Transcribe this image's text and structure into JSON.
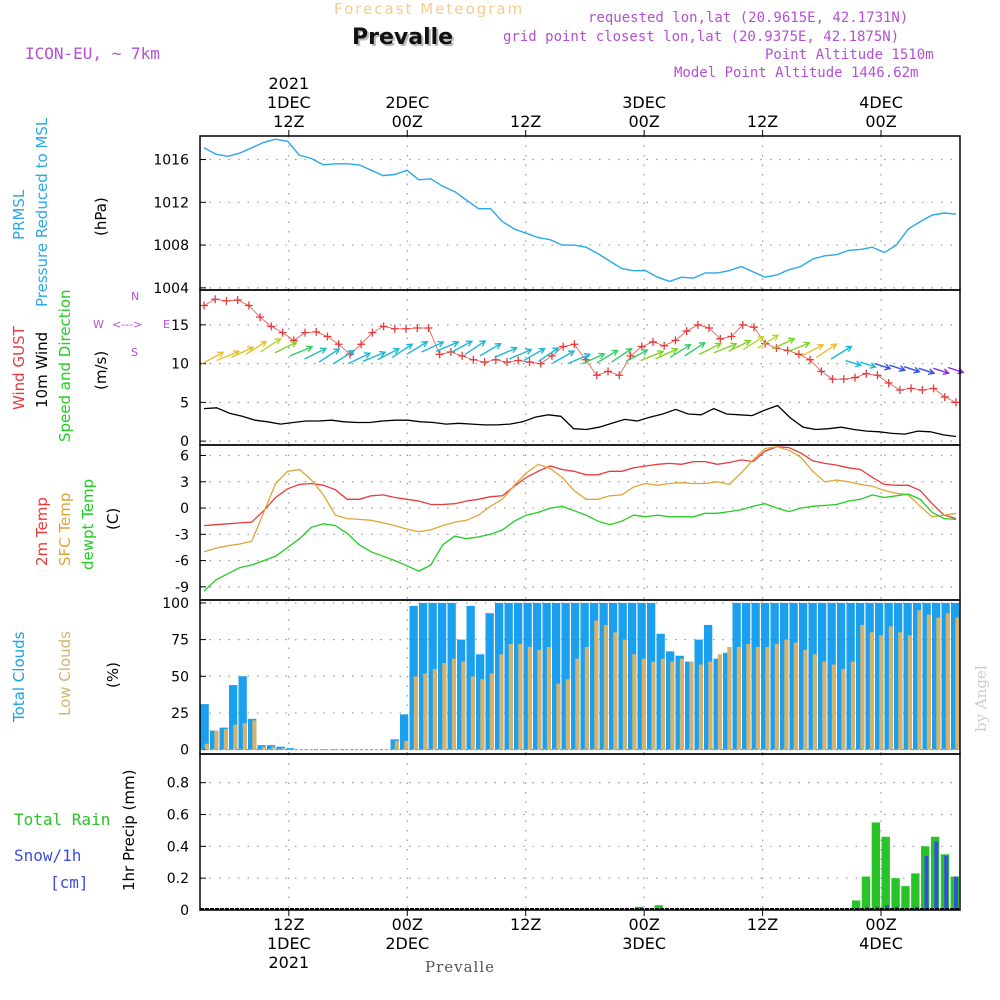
{
  "header": {
    "product": "Forecast Meteogram",
    "station": "Prevalle",
    "model": "ICON-EU, ~ 7km",
    "requested": "requested lon,lat (20.9615E, 42.1731N)",
    "grid_point": "grid point closest lon,lat (20.9375E, 42.1875N)",
    "point_altitude": "Point Altitude 1510m",
    "model_altitude": "Model Point Altitude 1446.62m",
    "footer_station": "Prevalle",
    "credit": "by Angel"
  },
  "time_axis": {
    "top_labels": [
      {
        "lines": [
          "2021",
          "1DEC",
          "12Z"
        ]
      },
      {
        "lines": [
          "2DEC",
          "00Z"
        ]
      },
      {
        "lines": [
          "12Z"
        ]
      },
      {
        "lines": [
          "3DEC",
          "00Z"
        ]
      },
      {
        "lines": [
          "12Z"
        ]
      },
      {
        "lines": [
          "4DEC",
          "00Z"
        ]
      }
    ],
    "bottom_labels": [
      {
        "lines": [
          "12Z",
          "1DEC",
          "2021"
        ]
      },
      {
        "lines": [
          "00Z",
          "2DEC"
        ]
      },
      {
        "lines": [
          "12Z"
        ]
      },
      {
        "lines": [
          "00Z",
          "3DEC"
        ]
      },
      {
        "lines": [
          "12Z"
        ]
      },
      {
        "lines": [
          "00Z",
          "4DEC"
        ]
      }
    ],
    "tick_hours": [
      9,
      21,
      33,
      45,
      57,
      69
    ],
    "hour_range": [
      0,
      77
    ]
  },
  "panel_labels": {
    "pressure": {
      "name": "PRMSL",
      "desc": "Pressure Reduced to MSL",
      "unit": "(hPa)"
    },
    "wind": {
      "gust": "Wind GUST",
      "wind10": "10m Wind",
      "speed_dir": "Speed and Direction",
      "unit": "(m/s)",
      "compass": {
        "w": "W",
        "e": "E",
        "n": "N",
        "s": "S",
        "arrows": "<--->"
      }
    },
    "temp": {
      "t2m": "2m Temp",
      "sfc": "SFC Temp",
      "dewpt": "dewpt Temp",
      "unit": "(C)"
    },
    "clouds": {
      "total": "Total Clouds",
      "low": "Low Clouds",
      "unit": "(%)"
    },
    "precip": {
      "rain": "Total  Rain",
      "snow": "Snow/1h",
      "snow_unit": "[cm]",
      "axis": "1hr Precip (mm)"
    }
  },
  "colors": {
    "pressure": "#2aa8e8",
    "gust": "#e83a3a",
    "wind10": "#000000",
    "t2m": "#e83a3a",
    "sfc": "#dea536",
    "dewpt": "#22cc22",
    "total_clouds": "#1aa0ee",
    "low_clouds": "#d3b370",
    "rain": "#27c427",
    "snow": "#3a4de0",
    "header_purple": "#b44fd6",
    "header_orange": "#f2cd8e"
  },
  "chart_data": [
    {
      "type": "line",
      "title": "PRMSL Pressure Reduced to MSL",
      "ylabel": "(hPa)",
      "ylim": [
        1003.8,
        1018.2
      ],
      "yticks": [
        1004,
        1008,
        1012,
        1016
      ],
      "series": [
        {
          "name": "PRMSL",
          "values": [
            1017.1,
            1016.5,
            1016.3,
            1016.6,
            1017.1,
            1017.6,
            1017.9,
            1017.7,
            1016.4,
            1016.1,
            1015.5,
            1015.6,
            1015.6,
            1015.5,
            1015.0,
            1014.5,
            1014.6,
            1015.0,
            1014.1,
            1014.2,
            1013.5,
            1013.0,
            1012.2,
            1011.4,
            1011.4,
            1010.2,
            1009.5,
            1009.1,
            1008.7,
            1008.5,
            1008.0,
            1008.0,
            1007.8,
            1007.2,
            1006.5,
            1005.8,
            1005.6,
            1005.6,
            1005.0,
            1004.6,
            1005.0,
            1004.9,
            1005.4,
            1005.4,
            1005.6,
            1006.0,
            1005.5,
            1005.0,
            1005.2,
            1005.7,
            1006.0,
            1006.7,
            1007.0,
            1007.1,
            1007.5,
            1007.6,
            1007.8,
            1007.3,
            1008.0,
            1009.5,
            1010.2,
            1010.8,
            1011.0,
            1010.9
          ]
        }
      ]
    },
    {
      "type": "line",
      "title": "Wind GUST, 10m Wind Speed and Direction",
      "ylabel": "(m/s)",
      "ylim": [
        -0.5,
        19.5
      ],
      "yticks": [
        0,
        5,
        10,
        15
      ],
      "series": [
        {
          "name": "Wind GUST",
          "values": [
            17.5,
            18.3,
            18.1,
            18.2,
            17.5,
            16.0,
            14.8,
            14.0,
            13.0,
            14.0,
            14.1,
            13.5,
            12.5,
            11.2,
            12.5,
            14.0,
            14.8,
            14.5,
            14.5,
            14.6,
            14.6,
            11.2,
            11.5,
            11.0,
            10.5,
            10.2,
            10.5,
            10.2,
            10.4,
            10.2,
            10.0,
            11.0,
            12.2,
            12.5,
            10.5,
            8.5,
            9.0,
            8.5,
            11.0,
            12.2,
            12.8,
            12.3,
            13.0,
            14.2,
            15.0,
            14.6,
            13.2,
            13.5,
            15.0,
            14.7,
            12.6,
            12.0,
            11.7,
            11.2,
            10.5,
            9.0,
            8.0,
            8.0,
            8.2,
            8.7,
            8.5,
            7.5,
            6.6,
            6.8,
            6.6,
            6.8,
            5.7,
            5.0
          ]
        },
        {
          "name": "10m Wind",
          "values": [
            4.2,
            4.3,
            3.6,
            3.2,
            2.7,
            2.5,
            2.2,
            2.4,
            2.6,
            2.6,
            2.7,
            2.5,
            2.4,
            2.4,
            2.6,
            2.7,
            2.7,
            2.5,
            2.4,
            2.2,
            2.3,
            2.2,
            2.1,
            2.1,
            2.2,
            2.5,
            3.1,
            3.4,
            3.2,
            1.6,
            1.5,
            1.8,
            2.3,
            2.8,
            2.6,
            3.1,
            3.5,
            4.1,
            3.5,
            3.4,
            4.2,
            3.5,
            3.4,
            3.3,
            4.0,
            4.6,
            3.0,
            1.8,
            1.5,
            1.6,
            1.8,
            1.5,
            1.3,
            1.2,
            1.0,
            0.9,
            1.3,
            1.2,
            0.8,
            0.6
          ]
        },
        {
          "name": "Speed and Direction",
          "values": [
            10.0,
            10.4,
            10.8,
            11.2,
            11.5,
            11.4,
            11.0,
            10.6,
            10.2,
            10.0,
            10.0,
            10.3,
            10.5,
            10.8,
            11.2,
            11.5,
            11.6,
            11.4,
            11.2,
            11.0,
            10.8,
            10.6,
            10.4,
            10.3,
            10.1,
            10.0,
            10.0,
            10.1,
            10.2,
            10.3,
            10.4,
            10.6,
            10.8,
            11.0,
            11.2,
            11.4,
            11.6,
            11.8,
            12.0,
            11.9,
            11.5,
            11.0,
            10.8,
            10.6,
            10.4,
            10.2,
            10.0,
            9.8,
            9.6,
            9.4,
            9.4,
            9.5
          ]
        }
      ],
      "arrow_colors": [
        "#e8c02e",
        "#e8c02e",
        "#e8c02e",
        "#e8c02e",
        "#b8d82a",
        "#7ed321",
        "#33cc66",
        "#22c4b4",
        "#1bb8d8",
        "#1bb8d8",
        "#1bb8d8",
        "#1bb8d8",
        "#1bb8d8",
        "#1bb8d8",
        "#1bb8d8",
        "#1bb8d8",
        "#1bb8d8",
        "#1bb8d8",
        "#1bb8d8",
        "#1bb8d8",
        "#1bb8d8",
        "#1bb8d8",
        "#1bb8d8",
        "#1bb8d8",
        "#1bb8d8",
        "#1bb8d8",
        "#33cc66",
        "#33cc66",
        "#33cc66",
        "#33cc66",
        "#7ed321",
        "#7ed321",
        "#33cc66",
        "#33cc66",
        "#7ed321",
        "#7ed321",
        "#7ed321",
        "#b8d82a",
        "#b8d82a",
        "#7ed321",
        "#7ed321",
        "#e8c02e",
        "#e8c02e",
        "#1bb8d8",
        "#1bb8d8",
        "#1bb8d8",
        "#3a4de0",
        "#3a4de0",
        "#3a4de0",
        "#3a4de0",
        "#8a2be2",
        "#8a2be2"
      ]
    },
    {
      "type": "line",
      "title": "2m Temp, SFC Temp, dewpt Temp",
      "ylabel": "(C)",
      "ylim": [
        -10.5,
        7.2
      ],
      "yticks": [
        -9,
        -6,
        -3,
        0,
        3,
        6
      ],
      "series": [
        {
          "name": "2m Temp",
          "values": [
            -2.0,
            -1.9,
            -1.8,
            -1.7,
            -1.6,
            -0.3,
            1.2,
            2.2,
            2.7,
            2.8,
            2.6,
            2.1,
            1.0,
            1.0,
            1.4,
            1.5,
            1.2,
            1.0,
            0.8,
            0.4,
            0.4,
            0.5,
            0.8,
            1.0,
            1.3,
            1.4,
            2.5,
            3.5,
            4.2,
            4.8,
            4.4,
            4.2,
            3.8,
            3.8,
            4.2,
            4.2,
            4.6,
            4.8,
            5.0,
            5.1,
            5.0,
            5.3,
            5.3,
            5.0,
            5.2,
            5.5,
            5.3,
            6.5,
            7.0,
            6.9,
            6.3,
            5.4,
            5.1,
            4.9,
            4.6,
            4.4,
            3.5,
            2.7,
            2.6,
            2.6,
            2.0,
            0.5,
            -0.8,
            -1.2
          ]
        },
        {
          "name": "SFC Temp",
          "values": [
            -5.0,
            -4.6,
            -4.3,
            -4.1,
            -3.8,
            -0.5,
            2.8,
            4.2,
            4.4,
            3.2,
            1.5,
            -0.8,
            -1.2,
            -1.3,
            -1.4,
            -1.7,
            -2.0,
            -2.4,
            -2.7,
            -2.5,
            -2.0,
            -1.6,
            -1.4,
            -0.8,
            0.2,
            1.0,
            2.6,
            4.0,
            5.0,
            4.5,
            3.5,
            2.0,
            1.0,
            1.0,
            1.4,
            1.5,
            2.4,
            2.8,
            2.6,
            2.8,
            2.9,
            2.8,
            2.8,
            3.0,
            2.7,
            4.0,
            5.5,
            6.8,
            7.0,
            6.6,
            5.8,
            4.2,
            3.0,
            3.2,
            3.0,
            2.7,
            2.5,
            2.0,
            1.7,
            1.5,
            0.2,
            -1.0,
            -0.8,
            -0.6
          ]
        },
        {
          "name": "dewpt Temp",
          "values": [
            -9.5,
            -8.2,
            -7.5,
            -6.8,
            -6.5,
            -6.0,
            -5.5,
            -4.5,
            -3.5,
            -2.2,
            -1.8,
            -2.0,
            -2.9,
            -4.2,
            -5.0,
            -5.5,
            -6.0,
            -6.6,
            -7.2,
            -6.5,
            -4.2,
            -3.2,
            -3.5,
            -3.3,
            -3.0,
            -2.5,
            -1.5,
            -0.8,
            -0.5,
            0.0,
            0.2,
            -0.3,
            -0.8,
            -1.5,
            -1.9,
            -1.5,
            -0.8,
            -1.0,
            -0.8,
            -1.0,
            -1.0,
            -1.0,
            -0.6,
            -0.6,
            -0.4,
            -0.2,
            0.2,
            0.5,
            0.0,
            -0.4,
            0.0,
            0.2,
            0.3,
            0.4,
            0.8,
            1.0,
            1.5,
            1.2,
            1.4,
            1.6,
            1.0,
            -0.5,
            -1.2,
            -1.3
          ]
        }
      ]
    },
    {
      "type": "bar",
      "title": "Total Clouds, Low Clouds",
      "ylabel": "(%)",
      "ylim": [
        -3,
        102
      ],
      "yticks": [
        0,
        25,
        50,
        75,
        100
      ],
      "series": [
        {
          "name": "Total Clouds",
          "values": [
            31,
            13,
            15,
            44,
            50,
            21,
            3,
            3,
            2,
            1,
            0,
            0,
            0,
            0,
            0,
            0,
            0,
            0,
            0,
            0,
            7,
            24,
            98,
            100,
            100,
            100,
            100,
            75,
            98,
            65,
            93,
            100,
            100,
            100,
            100,
            100,
            100,
            100,
            100,
            100,
            100,
            100,
            100,
            100,
            100,
            100,
            100,
            100,
            79,
            67,
            64,
            60,
            75,
            85,
            62,
            66,
            100,
            100,
            100,
            100,
            100,
            100,
            100,
            100,
            100,
            100,
            100,
            100,
            100,
            100,
            100,
            100,
            100,
            100,
            100,
            100,
            100,
            100,
            100,
            100
          ]
        },
        {
          "name": "Low Clouds",
          "values": [
            4,
            13,
            14,
            17,
            18,
            20,
            2,
            2,
            1,
            0,
            0,
            0,
            0,
            0,
            0,
            0,
            0,
            0,
            0,
            0,
            6,
            6,
            50,
            52,
            55,
            59,
            62,
            60,
            50,
            48,
            52,
            65,
            72,
            72,
            70,
            68,
            70,
            45,
            48,
            62,
            70,
            88,
            85,
            80,
            75,
            65,
            62,
            60,
            62,
            60,
            62,
            60,
            58,
            60,
            65,
            70,
            70,
            72,
            70,
            70,
            72,
            75,
            73,
            68,
            65,
            60,
            58,
            55,
            60,
            85,
            80,
            78,
            84,
            80,
            78,
            95,
            92,
            90,
            93,
            90
          ]
        }
      ]
    },
    {
      "type": "bar",
      "title": "Total Rain, Snow/1h [cm]",
      "ylabel": "1hr Precip (mm)",
      "ylim": [
        0,
        0.98
      ],
      "yticks": [
        0,
        0.2,
        0.4,
        0.6,
        0.8
      ],
      "series": [
        {
          "name": "Total Rain",
          "values": [
            0,
            0,
            0,
            0,
            0,
            0,
            0,
            0,
            0,
            0,
            0,
            0,
            0,
            0,
            0,
            0,
            0,
            0,
            0,
            0,
            0,
            0,
            0,
            0,
            0,
            0,
            0,
            0,
            0,
            0,
            0,
            0,
            0,
            0,
            0,
            0,
            0,
            0,
            0,
            0,
            0,
            0,
            0,
            0,
            0.02,
            0,
            0.03,
            0,
            0,
            0,
            0,
            0,
            0,
            0,
            0,
            0,
            0,
            0,
            0,
            0,
            0,
            0,
            0,
            0,
            0,
            0,
            0.06,
            0.21,
            0.55,
            0.46,
            0.2,
            0.15,
            0.23,
            0.4,
            0.46,
            0.35,
            0.21
          ]
        },
        {
          "name": "Snow/1h",
          "values": [
            0,
            0,
            0,
            0,
            0,
            0,
            0,
            0,
            0,
            0,
            0,
            0,
            0,
            0,
            0,
            0,
            0,
            0,
            0,
            0,
            0,
            0,
            0,
            0,
            0,
            0,
            0,
            0,
            0,
            0,
            0,
            0,
            0,
            0,
            0,
            0,
            0,
            0,
            0,
            0,
            0,
            0,
            0,
            0,
            0,
            0,
            0,
            0,
            0,
            0,
            0,
            0,
            0,
            0,
            0,
            0,
            0,
            0,
            0,
            0,
            0,
            0,
            0,
            0,
            0,
            0,
            0,
            0.02,
            0.02,
            0.03,
            0.02,
            0.01,
            0.02,
            0.34,
            0.43,
            0.34,
            0.21
          ]
        }
      ]
    }
  ]
}
